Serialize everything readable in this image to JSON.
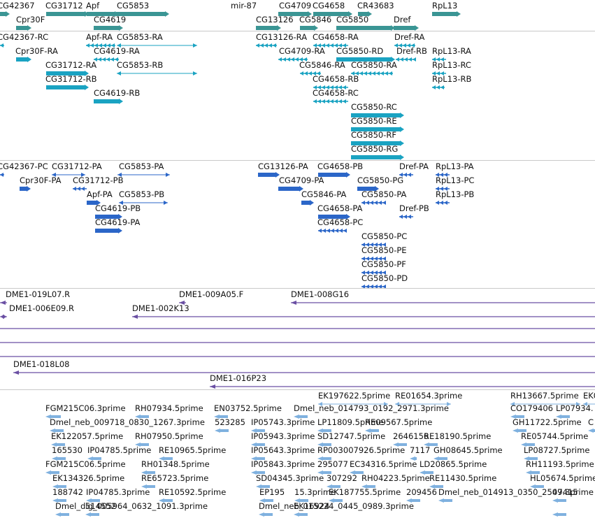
{
  "browser": {
    "tracks": [
      {
        "name": "gene-track",
        "color": "#3a9594",
        "labels": [
          "CG42367",
          "CG31712",
          "Apf",
          "CG5853",
          "mir-87",
          "CG4709",
          "CG4658",
          "CR43683",
          "RpL13",
          "Cpr30F",
          "CG4619",
          "CG13126",
          "CG5846",
          "CG5850",
          "Dref"
        ]
      },
      {
        "name": "transcript-track",
        "color": "#1aa3c2",
        "labels": [
          "CG42367-RC",
          "Apf-RA",
          "CG5853-RA",
          "CG13126-RA",
          "CG4658-RA",
          "Dref-RA",
          "Cpr30F-RA",
          "CG4619-RA",
          "CG4709-RA",
          "CG5850-RD",
          "Dref-RB",
          "RpL13-RA",
          "CG31712-RA",
          "CG5853-RB",
          "CG5846-RA",
          "CG5850-RA",
          "RpL13-RC",
          "CG31712-RB",
          "CG4658-RB",
          "RpL13-RB",
          "CG4619-RB",
          "CG4658-RC",
          "CG5850-RC",
          "CG5850-RE",
          "CG5850-RF",
          "CG5850-RG"
        ]
      },
      {
        "name": "protein-track",
        "color": "#2b66c8",
        "labels": [
          "CG42367-PC",
          "CG31712-PA",
          "CG5853-PA",
          "CG13126-PA",
          "CG4658-PB",
          "Dref-PA",
          "RpL13-PA",
          "Cpr30F-PA",
          "CG31712-PB",
          "CG4709-PA",
          "CG5850-PG",
          "RpL13-PC",
          "Apf-PA",
          "CG5853-PB",
          "CG5846-PA",
          "CG5850-PA",
          "RpL13-PB",
          "CG4619-PB",
          "CG4658-PA",
          "Dref-PB",
          "CG4619-PA",
          "CG4658-PC",
          "CG5850-PC",
          "CG5850-PE",
          "CG5850-PF",
          "CG5850-PD"
        ]
      },
      {
        "name": "bac-track",
        "color": "#6a4fa3",
        "labels": [
          "DME1-019L07.R",
          "DME1-009A05.F",
          "DME1-008G16",
          "DME1-006E09.R",
          "DME1-002K13",
          "DME1-018L08",
          "DME1-016P23"
        ]
      },
      {
        "name": "est-track",
        "color": "#7fb1df",
        "labels": [
          "EK197622.5prime",
          "RE01654.3prime",
          "RH13667.5prime",
          "EK0",
          "FGM215C06.3prime",
          "RH07934.5prime",
          "EN03752.5prime",
          "Dmel_neb_014793_0192_2971.3prime",
          "CO179406",
          "LP07934.",
          "Dmel_neb_009718_0830_1267.3prime",
          "523285",
          "IP05743.3prime",
          "LP11809.5prime",
          "RE09567.5prime",
          "GH11722.5prime",
          "C",
          "EK122057.5prime",
          "RH07950.5prime",
          "IP05943.3prime",
          "SD12747.5prime",
          "2646156",
          "RE18190.5prime",
          "RE05744.5prime",
          "165530",
          "IP04785.5prime",
          "RE10965.5prime",
          "IP05643.3prime",
          "RP003007926.5prime",
          "7117",
          "GH08645.5prime",
          "LP08727.5prime",
          "FGM215C06.5prime",
          "RH01348.5prime",
          "IP05843.3prime",
          "295077",
          "EC34316.5prime",
          "LD20865.5prime",
          "RH11193.5prime",
          "EK134326.5prime",
          "RE65723.5prime",
          "SD04345.3prime",
          "307292",
          "RH04223.5prime",
          "RE11430.5prime",
          "HL05674.5prime",
          "188742",
          "IP04785.3prime",
          "RE10592.5prime",
          "EP195",
          "15.3prime",
          "EK187755.5prime",
          "209456",
          "Dmel_neb_014913_0350_2509.3prime",
          "47415",
          "Dmel_dig_005964_0632_1091.3prime",
          "514552",
          "Dmel_neb_015224_0445_0989.3prime",
          "EK16924"
        ]
      }
    ]
  }
}
